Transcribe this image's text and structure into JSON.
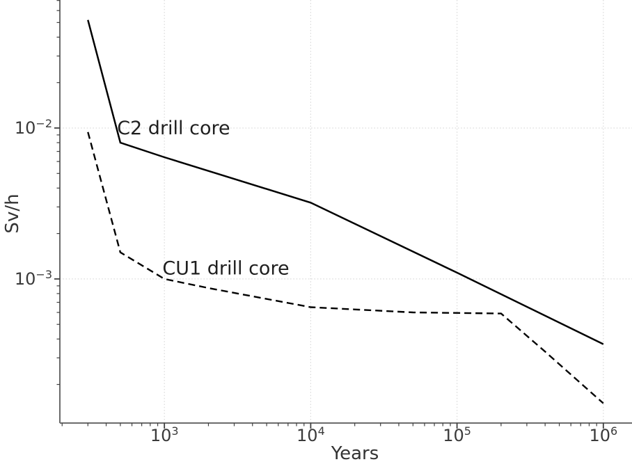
{
  "figure": {
    "background": "#ffffff"
  },
  "chart_data": {
    "type": "line",
    "title": "",
    "xlabel": "Years",
    "ylabel": "Sv/h",
    "x_scale": "log",
    "y_scale": "log",
    "xlim": [
      193,
      1570000
    ],
    "ylim": [
      0.000111,
      0.0705
    ],
    "grid": {
      "show": true,
      "which": "major",
      "style": "dotted"
    },
    "legend_position": "none (inline annotations)",
    "x_ticks": [
      {
        "value": 1000,
        "base": "10",
        "exp": "3"
      },
      {
        "value": 10000,
        "base": "10",
        "exp": "4"
      },
      {
        "value": 100000,
        "base": "10",
        "exp": "5"
      },
      {
        "value": 1000000,
        "base": "10",
        "exp": "6"
      }
    ],
    "y_ticks": [
      {
        "value": 0.01,
        "base": "10",
        "exp": "−2"
      },
      {
        "value": 0.001,
        "base": "10",
        "exp": "−3"
      }
    ],
    "series": [
      {
        "name": "C2 drill core",
        "line_style": "solid",
        "x": [
          300,
          500,
          1000,
          10000,
          100000,
          1000000
        ],
        "y": [
          0.052,
          0.008,
          0.0064,
          0.0032,
          0.0011,
          0.00037
        ]
      },
      {
        "name": "CU1 drill core",
        "line_style": "dashed",
        "x": [
          300,
          500,
          1000,
          2000,
          10000,
          50000,
          200000,
          400000,
          1000000
        ],
        "y": [
          0.0094,
          0.0015,
          0.001,
          0.00087,
          0.00065,
          0.0006,
          0.00059,
          0.00033,
          0.00015
        ]
      }
    ],
    "annotations": [
      {
        "text": "C2 drill core",
        "x": 475,
        "y": 0.01
      },
      {
        "text": "CU1 drill core",
        "x": 970,
        "y": 0.00118
      }
    ],
    "colors": {
      "line": "#000000",
      "grid": "#d9d9d9",
      "spine": "#6b6b6b",
      "tick": "#3f3f3f",
      "label": "#2b2b2b"
    }
  }
}
